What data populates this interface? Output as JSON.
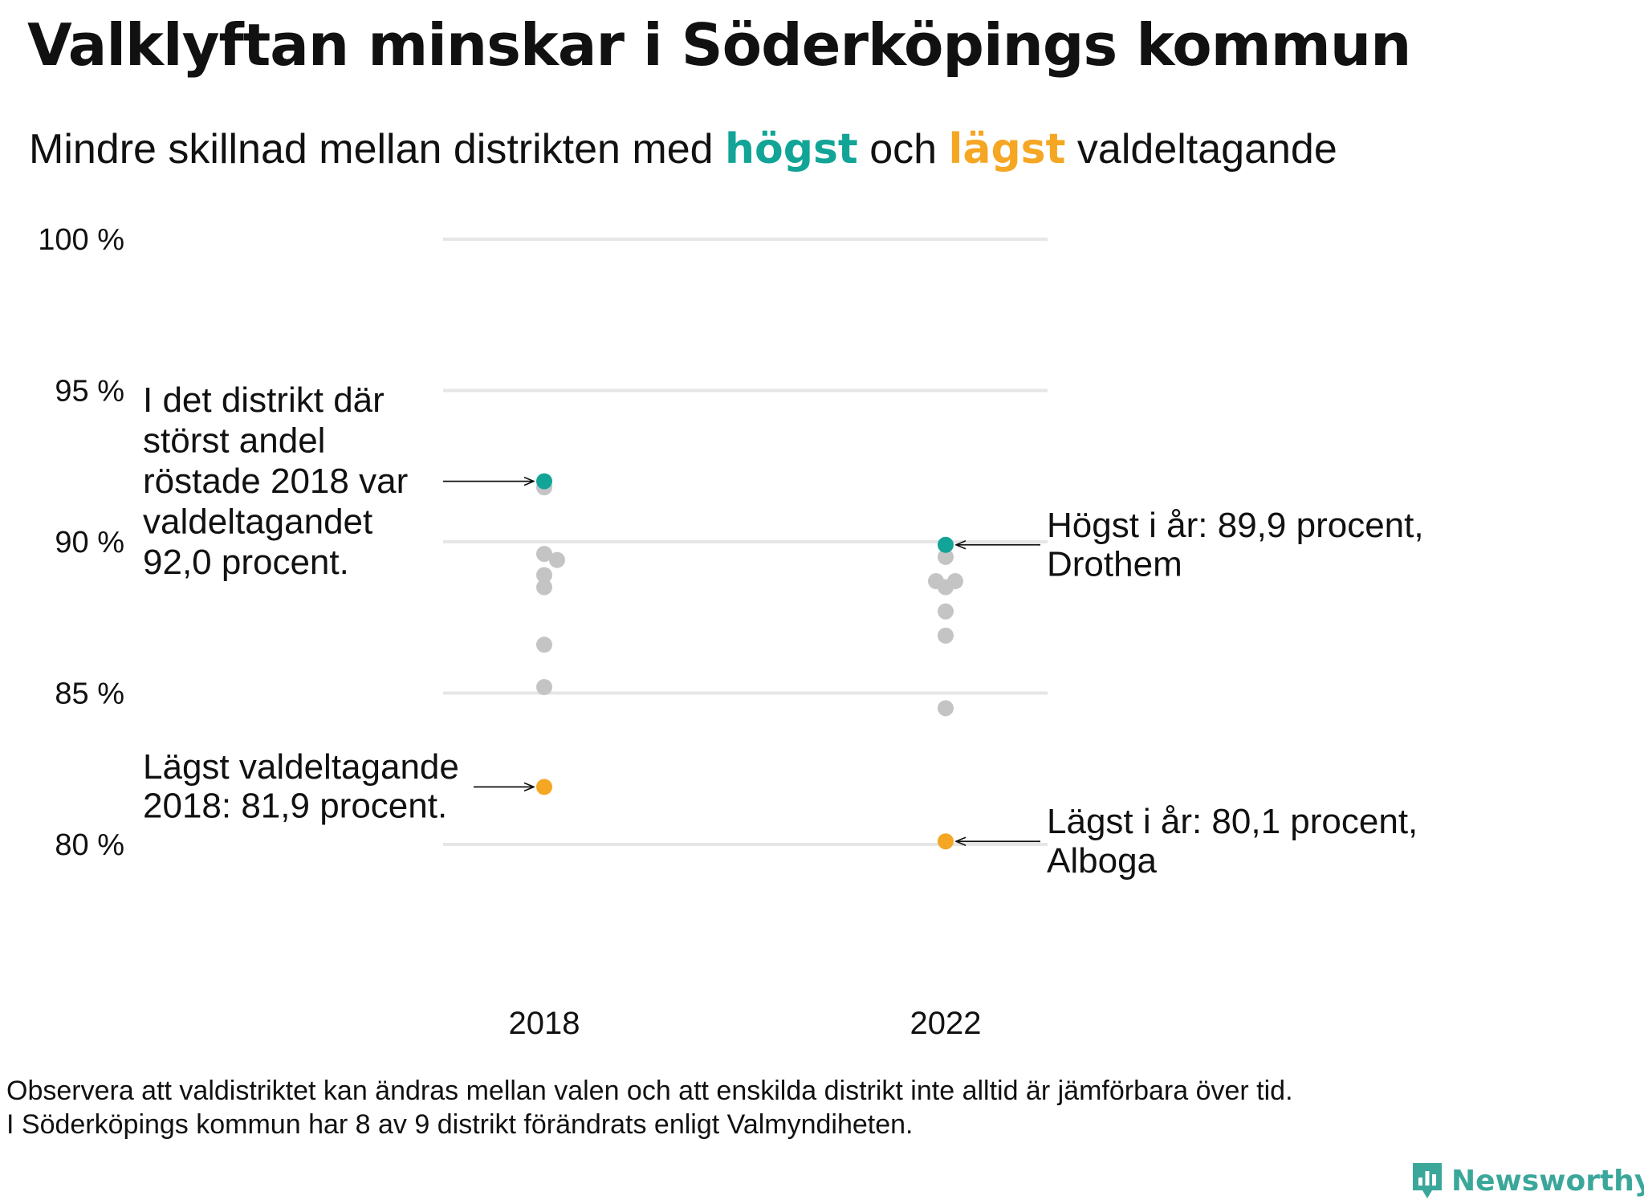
{
  "title": "Valklyftan minskar i Söderköpings kommun",
  "subtitle": {
    "part1": "Mindre  skillnad  mellan  distrikten  med ",
    "highlight_high": "högst",
    "part2": " och ",
    "highlight_low": "lägst",
    "part3": " valdeltagande"
  },
  "colors": {
    "high": "#12a496",
    "low": "#f5a623",
    "other": "#c4c4c4",
    "grid": "#e6e6e6",
    "text": "#111111",
    "brand": "#3aa79a"
  },
  "chart_data": {
    "type": "scatter",
    "x": [
      "2018",
      "2022"
    ],
    "ylim": [
      77,
      101
    ],
    "yticks": [
      80,
      85,
      90,
      95,
      100
    ],
    "ytick_labels": [
      "80 %",
      "85 %",
      "90 %",
      "95 %",
      "100 %"
    ],
    "grid": true,
    "series": [
      {
        "x": "2018",
        "highest": 92.0,
        "lowest": 81.9,
        "others": [
          91.8,
          89.6,
          89.4,
          88.9,
          88.5,
          86.6,
          85.2
        ]
      },
      {
        "x": "2022",
        "highest": 89.9,
        "lowest": 80.1,
        "others": [
          89.5,
          88.7,
          88.7,
          88.5,
          87.7,
          86.9,
          84.5
        ]
      }
    ],
    "annotations": [
      {
        "target": "2018-highest",
        "lines": [
          "I det distrikt där",
          "störst andel",
          "röstade 2018 var",
          "valdeltagandet",
          "92,0 procent."
        ]
      },
      {
        "target": "2018-lowest",
        "lines": [
          "Lägst valdeltagande",
          "2018: 81,9 procent."
        ]
      },
      {
        "target": "2022-highest",
        "lines": [
          "Högst i år: 89,9 procent,",
          "Drothem"
        ]
      },
      {
        "target": "2022-lowest",
        "lines": [
          "Lägst i år: 80,1 procent,",
          "Alboga"
        ]
      }
    ]
  },
  "footnote": {
    "line1": "Observera att valdistriktet kan ändras mellan valen och att enskilda distrikt inte alltid är jämförbara över tid.",
    "line2": "I Söderköpings kommun har 8 av 9 distrikt förändrats enligt Valmyndiheten."
  },
  "brand": {
    "name": "Newsworthy",
    "icon": "bar-chart-speech-bubble-icon"
  }
}
